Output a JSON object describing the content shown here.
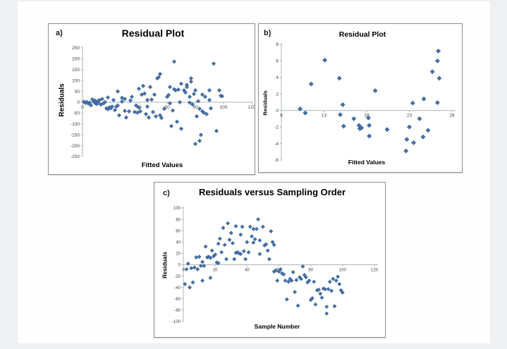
{
  "page": {
    "background": "#eff0f1",
    "surface": "#fefefe",
    "marker_color": "#4572a7",
    "marker_stroke": "#36598e",
    "axis_color": "#aab4bc",
    "tick_text_color": "#3f3f3f"
  },
  "chart_data": [
    {
      "type": "scatter",
      "panel_label": "a)",
      "title": "Residual Plot",
      "xlabel": "Fitted Values",
      "ylabel": "Residuals",
      "xlim": [
        0,
        120
      ],
      "ylim": [
        -250,
        250
      ],
      "xticks": [
        0,
        20,
        40,
        60,
        80,
        100,
        120
      ],
      "yticks": [
        -250,
        -200,
        -150,
        -100,
        -50,
        0,
        50,
        100,
        150,
        200,
        250
      ],
      "legend": "none",
      "grid": false,
      "points": [
        [
          1,
          2
        ],
        [
          2,
          -3
        ],
        [
          3,
          1
        ],
        [
          4,
          -6
        ],
        [
          5,
          -2
        ],
        [
          6,
          -14
        ],
        [
          7,
          13
        ],
        [
          8,
          2
        ],
        [
          9,
          -4
        ],
        [
          9,
          7
        ],
        [
          10,
          0
        ],
        [
          10,
          -8
        ],
        [
          11,
          5
        ],
        [
          11,
          -3
        ],
        [
          12,
          10
        ],
        [
          13,
          -11
        ],
        [
          14,
          15
        ],
        [
          15,
          -5
        ],
        [
          16,
          1
        ],
        [
          17,
          -28
        ],
        [
          18,
          22
        ],
        [
          18,
          -32
        ],
        [
          19,
          -25
        ],
        [
          20,
          -28
        ],
        [
          21,
          -20
        ],
        [
          22,
          10
        ],
        [
          23,
          -36
        ],
        [
          24,
          -20
        ],
        [
          25,
          50
        ],
        [
          25,
          -15
        ],
        [
          26,
          -60
        ],
        [
          28,
          20
        ],
        [
          28,
          3
        ],
        [
          30,
          15
        ],
        [
          30,
          -40
        ],
        [
          31,
          -70
        ],
        [
          33,
          -42
        ],
        [
          34,
          8
        ],
        [
          35,
          25
        ],
        [
          37,
          -45
        ],
        [
          38,
          -15
        ],
        [
          39,
          -48
        ],
        [
          40,
          -25
        ],
        [
          40,
          62
        ],
        [
          41,
          -42
        ],
        [
          42,
          35
        ],
        [
          43,
          75
        ],
        [
          44,
          40
        ],
        [
          45,
          -55
        ],
        [
          46,
          10
        ],
        [
          46,
          -20
        ],
        [
          47,
          -70
        ],
        [
          48,
          70
        ],
        [
          49,
          12
        ],
        [
          50,
          -45
        ],
        [
          51,
          35
        ],
        [
          52,
          -65
        ],
        [
          53,
          110
        ],
        [
          54,
          115
        ],
        [
          55,
          130
        ],
        [
          55,
          -60
        ],
        [
          56,
          -72
        ],
        [
          58,
          -30
        ],
        [
          60,
          25
        ],
        [
          61,
          33
        ],
        [
          62,
          70
        ],
        [
          62,
          -5
        ],
        [
          63,
          -110
        ],
        [
          64,
          -38
        ],
        [
          65,
          187
        ],
        [
          65,
          60
        ],
        [
          66,
          55
        ],
        [
          67,
          -90
        ],
        [
          68,
          58
        ],
        [
          69,
          0
        ],
        [
          70,
          85
        ],
        [
          70,
          -122
        ],
        [
          72,
          55
        ],
        [
          73,
          45
        ],
        [
          74,
          70
        ],
        [
          74,
          80
        ],
        [
          76,
          25
        ],
        [
          76,
          -2
        ],
        [
          77,
          110
        ],
        [
          77,
          95
        ],
        [
          78,
          -10
        ],
        [
          79,
          38
        ],
        [
          80,
          -192
        ],
        [
          80,
          55
        ],
        [
          81,
          -65
        ],
        [
          82,
          5
        ],
        [
          83,
          -30
        ],
        [
          83,
          -178
        ],
        [
          84,
          -150
        ],
        [
          85,
          35
        ],
        [
          85,
          -42
        ],
        [
          86,
          -48
        ],
        [
          87,
          25
        ],
        [
          88,
          -55
        ],
        [
          90,
          55
        ],
        [
          90,
          10
        ],
        [
          91,
          -28
        ],
        [
          93,
          178
        ],
        [
          95,
          -132
        ],
        [
          97,
          55
        ],
        [
          98,
          30
        ],
        [
          99,
          28
        ]
      ]
    },
    {
      "type": "scatter",
      "panel_label": "b)",
      "title": "Residual Plot",
      "xlabel": "Fitted Values",
      "ylabel": "Residuals",
      "xlim": [
        8,
        28
      ],
      "ylim": [
        -6,
        8
      ],
      "xticks": [
        8,
        13,
        18,
        23,
        28
      ],
      "yticks": [
        -6,
        -4,
        -2,
        0,
        2,
        4,
        6,
        8
      ],
      "legend": "none",
      "grid": false,
      "points": [
        [
          10.2,
          0.2
        ],
        [
          10.8,
          -0.3
        ],
        [
          11.5,
          3.2
        ],
        [
          13.1,
          6.1
        ],
        [
          14.8,
          3.9
        ],
        [
          14.9,
          -0.5
        ],
        [
          15.2,
          0.7
        ],
        [
          15.3,
          -1.9
        ],
        [
          16.5,
          -1.0
        ],
        [
          17.1,
          -1.8
        ],
        [
          17.2,
          -2.2
        ],
        [
          17.4,
          -2.1
        ],
        [
          18.2,
          -0.9
        ],
        [
          18.3,
          -1.8
        ],
        [
          18.3,
          -3.1
        ],
        [
          19.0,
          2.4
        ],
        [
          20.4,
          -2.3
        ],
        [
          22.6,
          -4.9
        ],
        [
          22.7,
          -3.5
        ],
        [
          23.0,
          -2.0
        ],
        [
          23.4,
          0.9
        ],
        [
          23.5,
          -3.9
        ],
        [
          24.2,
          -1.0
        ],
        [
          24.6,
          -3.2
        ],
        [
          24.7,
          1.4
        ],
        [
          25.2,
          -2.4
        ],
        [
          25.7,
          4.7
        ],
        [
          26.3,
          6.0
        ],
        [
          26.4,
          7.2
        ],
        [
          26.5,
          3.9
        ],
        [
          26.3,
          0.95
        ]
      ]
    },
    {
      "type": "scatter",
      "panel_label": "c)",
      "title": "Residuals versus Sampling Order",
      "xlabel": "Sample Number",
      "ylabel": "Residuals",
      "xlim": [
        0,
        120
      ],
      "ylim": [
        -100,
        100
      ],
      "xticks": [
        0,
        20,
        40,
        60,
        80,
        100,
        120
      ],
      "yticks": [
        -100,
        -80,
        -60,
        -40,
        -20,
        0,
        20,
        40,
        60,
        80,
        100
      ],
      "legend": "none",
      "grid": false,
      "points": [
        [
          1,
          -34
        ],
        [
          2,
          -8
        ],
        [
          3,
          2
        ],
        [
          4,
          -40
        ],
        [
          5,
          -6
        ],
        [
          6,
          -31
        ],
        [
          7,
          -5
        ],
        [
          8,
          13
        ],
        [
          9,
          -8
        ],
        [
          10,
          14
        ],
        [
          11,
          -2
        ],
        [
          12,
          5
        ],
        [
          12,
          -28
        ],
        [
          13,
          -2
        ],
        [
          14,
          32
        ],
        [
          15,
          13
        ],
        [
          16,
          14
        ],
        [
          17,
          12
        ],
        [
          17,
          -23
        ],
        [
          18,
          25
        ],
        [
          19,
          15
        ],
        [
          20,
          18
        ],
        [
          21,
          4
        ],
        [
          22,
          3
        ],
        [
          22,
          37
        ],
        [
          23,
          46
        ],
        [
          24,
          22
        ],
        [
          25,
          65
        ],
        [
          26,
          35
        ],
        [
          27,
          10
        ],
        [
          28,
          73
        ],
        [
          29,
          44
        ],
        [
          30,
          56
        ],
        [
          31,
          38
        ],
        [
          32,
          10
        ],
        [
          33,
          21
        ],
        [
          33,
          68
        ],
        [
          34,
          22
        ],
        [
          35,
          20
        ],
        [
          36,
          19
        ],
        [
          36,
          53
        ],
        [
          37,
          67
        ],
        [
          38,
          24
        ],
        [
          39,
          10
        ],
        [
          40,
          40
        ],
        [
          41,
          22
        ],
        [
          42,
          67
        ],
        [
          43,
          50
        ],
        [
          44,
          63
        ],
        [
          44,
          39
        ],
        [
          45,
          45
        ],
        [
          46,
          63
        ],
        [
          47,
          80
        ],
        [
          48,
          43
        ],
        [
          48,
          19
        ],
        [
          50,
          67
        ],
        [
          51,
          34
        ],
        [
          52,
          36
        ],
        [
          53,
          25
        ],
        [
          54,
          10
        ],
        [
          55,
          59
        ],
        [
          56,
          40
        ],
        [
          57,
          35
        ],
        [
          57,
          -12
        ],
        [
          58,
          -10
        ],
        [
          59,
          -28
        ],
        [
          60,
          -12
        ],
        [
          61,
          -8
        ],
        [
          62,
          -15
        ],
        [
          63,
          -17
        ],
        [
          64,
          -28
        ],
        [
          65,
          -61
        ],
        [
          66,
          -30
        ],
        [
          67,
          -25
        ],
        [
          68,
          -28
        ],
        [
          69,
          -13
        ],
        [
          70,
          -48
        ],
        [
          71,
          -27
        ],
        [
          72,
          -72
        ],
        [
          73,
          -22
        ],
        [
          74,
          -25
        ],
        [
          75,
          -3
        ],
        [
          76,
          -18
        ],
        [
          77,
          -22
        ],
        [
          78,
          -31
        ],
        [
          79,
          -28
        ],
        [
          80,
          -62
        ],
        [
          81,
          -59
        ],
        [
          82,
          -30
        ],
        [
          83,
          -70
        ],
        [
          84,
          -45
        ],
        [
          85,
          -44
        ],
        [
          86,
          -51
        ],
        [
          87,
          -58
        ],
        [
          88,
          -42
        ],
        [
          89,
          -43
        ],
        [
          90,
          -74
        ],
        [
          90,
          -86
        ],
        [
          91,
          -43
        ],
        [
          92,
          -30
        ],
        [
          93,
          -46
        ],
        [
          94,
          -25
        ],
        [
          95,
          -73
        ],
        [
          96,
          -28
        ],
        [
          97,
          -21
        ],
        [
          98,
          -34
        ],
        [
          99,
          -45
        ],
        [
          100,
          -49
        ]
      ]
    }
  ]
}
